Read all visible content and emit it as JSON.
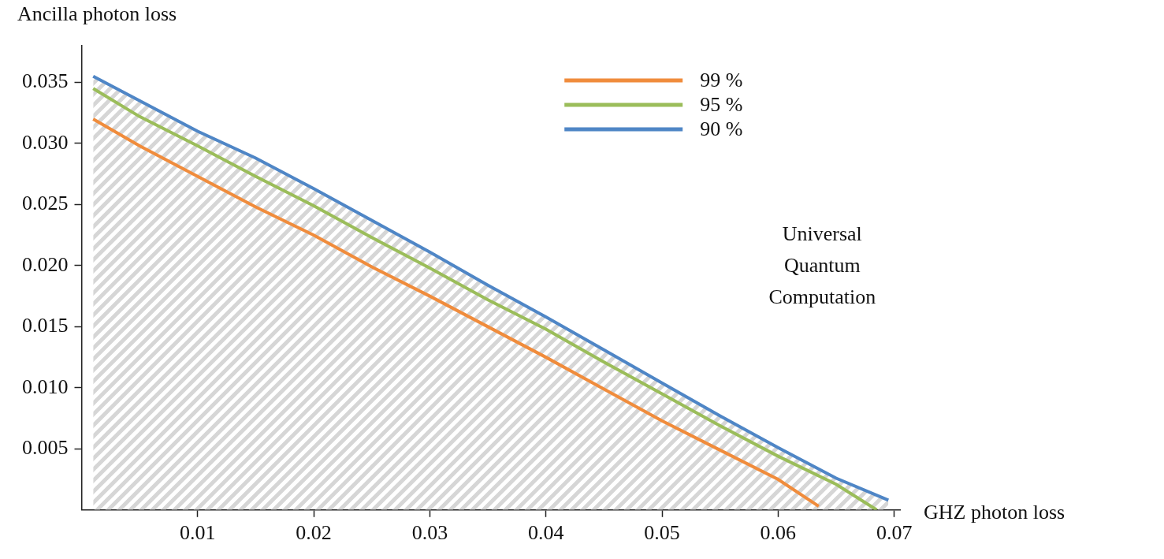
{
  "chart_data": {
    "type": "line",
    "x_label": "GHZ photon loss",
    "y_label": "Ancilla photon loss",
    "xlim": [
      0,
      0.0705
    ],
    "ylim": [
      0,
      0.038
    ],
    "xticks": [
      0.01,
      0.02,
      0.03,
      0.04,
      0.05,
      0.06,
      0.07
    ],
    "yticks": [
      0.005,
      {
        "value": 0.01,
        "label": "0.010"
      },
      0.015,
      {
        "value": 0.02,
        "label": "0.020"
      },
      0.025,
      {
        "value": 0.03,
        "label": "0.030"
      },
      0.035
    ],
    "grid": false,
    "legend": "upper right",
    "annotations": [
      {
        "text": "Universal Quantum Computation",
        "x": 0.0638,
        "y": 0.0199
      }
    ],
    "series": [
      {
        "name": "99 %",
        "color": "#f08c3c",
        "x": [
          0.001,
          0.005,
          0.01,
          0.015,
          0.02,
          0.025,
          0.03,
          0.035,
          0.04,
          0.045,
          0.05,
          0.055,
          0.06,
          0.0635
        ],
        "values": [
          0.032,
          0.0298,
          0.0273,
          0.0248,
          0.0225,
          0.0199,
          0.0175,
          0.015,
          0.0125,
          0.0099,
          0.0073,
          0.0049,
          0.0025,
          0.0003
        ]
      },
      {
        "name": "95 %",
        "color": "#9bbd5a",
        "x": [
          0.001,
          0.005,
          0.01,
          0.015,
          0.02,
          0.025,
          0.03,
          0.035,
          0.04,
          0.045,
          0.05,
          0.055,
          0.06,
          0.065,
          0.0685
        ],
        "values": [
          0.0345,
          0.0322,
          0.0298,
          0.0273,
          0.0249,
          0.0223,
          0.0198,
          0.0172,
          0.0148,
          0.0121,
          0.0095,
          0.0069,
          0.0044,
          0.0021,
          0
        ]
      },
      {
        "name": "90 %",
        "color": "#4f86c6",
        "x": [
          0.001,
          0.005,
          0.01,
          0.015,
          0.02,
          0.025,
          0.03,
          0.035,
          0.04,
          0.045,
          0.05,
          0.055,
          0.06,
          0.065,
          0.0695
        ],
        "values": [
          0.0355,
          0.0335,
          0.031,
          0.0288,
          0.0263,
          0.0237,
          0.0211,
          0.0184,
          0.0158,
          0.0131,
          0.0104,
          0.0077,
          0.0051,
          0.0026,
          0.0008
        ]
      }
    ]
  }
}
